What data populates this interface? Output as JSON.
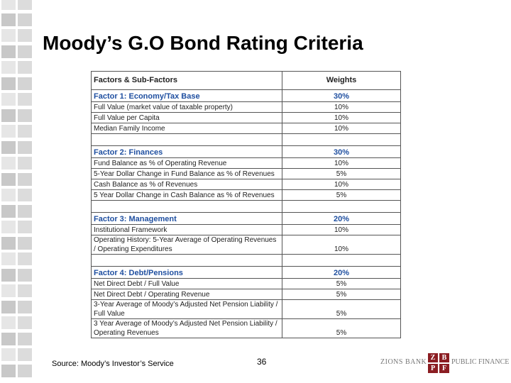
{
  "header": {
    "title": "Moody’s G.O Bond Rating Criteria"
  },
  "table": {
    "headers": [
      "Factors & Sub-Factors",
      "Weights"
    ],
    "sections": [
      {
        "factor": "Factor 1: Economy/Tax Base",
        "weight": "30%",
        "rows": [
          [
            "Full Value (market value of taxable property)",
            "10%"
          ],
          [
            "Full Value per Capita",
            "10%"
          ],
          [
            "Median Family Income",
            "10%"
          ]
        ]
      },
      {
        "factor": "Factor 2: Finances",
        "weight": "30%",
        "rows": [
          [
            "Fund Balance as % of Operating Revenue",
            "10%"
          ],
          [
            "5-Year Dollar Change in Fund Balance as % of Revenues",
            "5%"
          ],
          [
            "Cash Balance as % of Revenues",
            "10%"
          ],
          [
            "5 Year Dollar Change in Cash Balance as % of Revenues",
            "5%"
          ]
        ]
      },
      {
        "factor": "Factor 3: Management",
        "weight": "20%",
        "rows": [
          [
            "Institutional Framework",
            "10%"
          ],
          [
            "Operating History: 5-Year Average of Operating Revenues / Operating Expenditures",
            "10%"
          ]
        ]
      },
      {
        "factor": "Factor 4: Debt/Pensions",
        "weight": "20%",
        "rows": [
          [
            "Net Direct Debt / Full Value",
            "5%"
          ],
          [
            "Net Direct Debt / Operating Revenue",
            "5%"
          ],
          [
            "3-Year Average of Moody’s Adjusted Net Pension Liability / Full Value",
            "5%"
          ],
          [
            "3 Year Average of Moody’s Adjusted Net Pension Liability / Operating Revenues",
            "5%"
          ]
        ]
      }
    ]
  },
  "footer": {
    "source": "Source: Moody’s Investor’s Service",
    "page_number": "36"
  },
  "logo": {
    "bank": "ZIONS BANK",
    "letters": [
      "Z",
      "B",
      "P",
      "F"
    ],
    "division": "PUBLIC FINANCE"
  }
}
